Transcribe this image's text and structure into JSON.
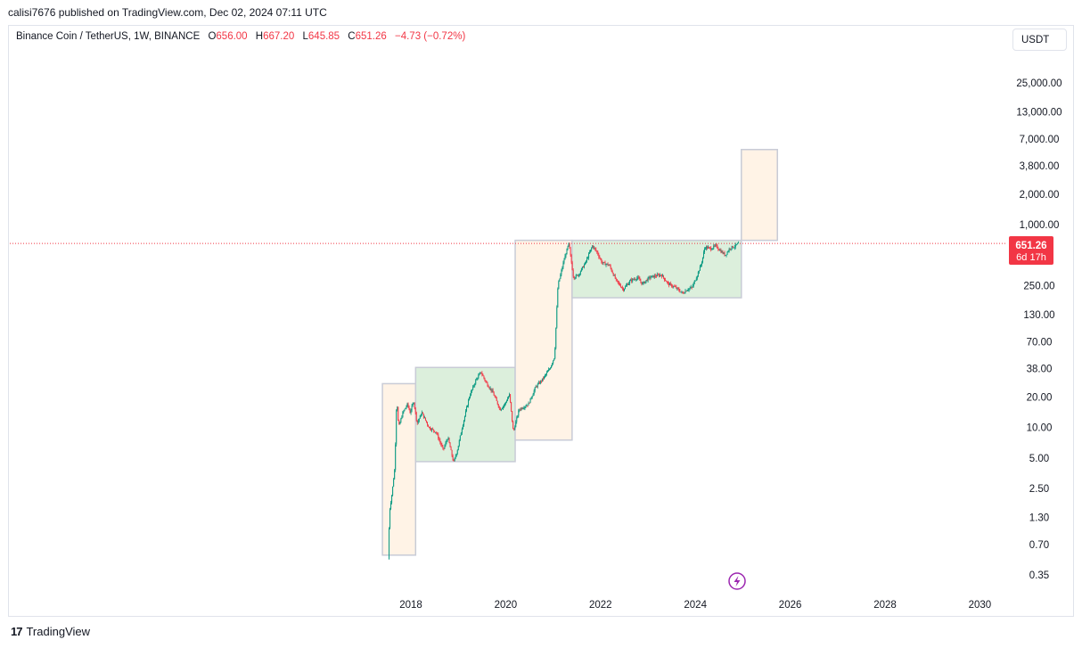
{
  "header": {
    "published": "calisi7676 published on TradingView.com, Dec 02, 2024 07:11 UTC"
  },
  "legend": {
    "symbol": "Binance Coin / TetherUS, 1W, BINANCE",
    "open_label": "O",
    "open": "656.00",
    "high_label": "H",
    "high": "667.20",
    "low_label": "L",
    "low": "645.85",
    "close_label": "C",
    "close": "651.26",
    "change": "−4.73 (−0.72%)"
  },
  "currency_button": "USDT",
  "price_badge": {
    "price": "651.26",
    "countdown": "6d 17h"
  },
  "footer": {
    "brand": "TradingView",
    "logo_glyph": "17"
  },
  "colors": {
    "up": "#089981",
    "down": "#f23645",
    "accumulation_box": "#dcefdc",
    "expansion_box": "#fff3e6",
    "box_border": "#c8cbd6",
    "flash_icon": "#9c27b0"
  },
  "chart_data": {
    "type": "candlestick",
    "title": "Binance Coin / TetherUS",
    "interval": "1W",
    "y_scale": "log",
    "x_ticks": [
      "2018",
      "2020",
      "2022",
      "2024",
      "2026",
      "2028",
      "2030"
    ],
    "x_tick_years": [
      2018,
      2020,
      2022,
      2024,
      2026,
      2028,
      2030
    ],
    "y_ticks": [
      "25,000.00",
      "13,000.00",
      "7,000.00",
      "3,800.00",
      "2,000.00",
      "1,000.00",
      "250.00",
      "130.00",
      "70.00",
      "38.00",
      "20.00",
      "10.00",
      "5.00",
      "2.50",
      "1.30",
      "0.70",
      "0.35"
    ],
    "y_tick_values": [
      25000,
      13000,
      7000,
      3800,
      2000,
      1000,
      250,
      130,
      70,
      38,
      20,
      10,
      5,
      2.5,
      1.3,
      0.7,
      0.35
    ],
    "current_price": 651.26,
    "price_path": [
      [
        2017.54,
        0.5
      ],
      [
        2017.57,
        1.5
      ],
      [
        2017.62,
        2.2
      ],
      [
        2017.68,
        4.0
      ],
      [
        2017.72,
        20.0
      ],
      [
        2017.76,
        10.0
      ],
      [
        2017.85,
        14.0
      ],
      [
        2017.95,
        17.0
      ],
      [
        2018.0,
        14.0
      ],
      [
        2018.08,
        18.0
      ],
      [
        2018.15,
        11.0
      ],
      [
        2018.25,
        14.0
      ],
      [
        2018.4,
        10.0
      ],
      [
        2018.55,
        9.0
      ],
      [
        2018.7,
        6.0
      ],
      [
        2018.8,
        8.0
      ],
      [
        2018.92,
        4.5
      ],
      [
        2019.0,
        6.0
      ],
      [
        2019.1,
        10.0
      ],
      [
        2019.25,
        20.0
      ],
      [
        2019.4,
        30.0
      ],
      [
        2019.5,
        35.0
      ],
      [
        2019.6,
        28.0
      ],
      [
        2019.75,
        22.0
      ],
      [
        2019.9,
        15.0
      ],
      [
        2020.0,
        17.0
      ],
      [
        2020.1,
        21.0
      ],
      [
        2020.18,
        9.0
      ],
      [
        2020.3,
        15.0
      ],
      [
        2020.5,
        17.0
      ],
      [
        2020.65,
        25.0
      ],
      [
        2020.8,
        30.0
      ],
      [
        2020.95,
        38.0
      ],
      [
        2021.05,
        50.0
      ],
      [
        2021.12,
        250.0
      ],
      [
        2021.25,
        450.0
      ],
      [
        2021.35,
        650.0
      ],
      [
        2021.45,
        300.0
      ],
      [
        2021.55,
        320.0
      ],
      [
        2021.7,
        420.0
      ],
      [
        2021.85,
        620.0
      ],
      [
        2021.95,
        530.0
      ],
      [
        2022.05,
        420.0
      ],
      [
        2022.2,
        400.0
      ],
      [
        2022.35,
        280.0
      ],
      [
        2022.5,
        230.0
      ],
      [
        2022.65,
        280.0
      ],
      [
        2022.8,
        300.0
      ],
      [
        2022.9,
        260.0
      ],
      [
        2023.05,
        300.0
      ],
      [
        2023.15,
        310.0
      ],
      [
        2023.3,
        320.0
      ],
      [
        2023.45,
        260.0
      ],
      [
        2023.6,
        240.0
      ],
      [
        2023.75,
        210.0
      ],
      [
        2023.85,
        230.0
      ],
      [
        2023.95,
        240.0
      ],
      [
        2024.05,
        310.0
      ],
      [
        2024.15,
        420.0
      ],
      [
        2024.22,
        600.0
      ],
      [
        2024.35,
        580.0
      ],
      [
        2024.45,
        620.0
      ],
      [
        2024.55,
        550.0
      ],
      [
        2024.65,
        500.0
      ],
      [
        2024.75,
        590.0
      ],
      [
        2024.85,
        610.0
      ],
      [
        2024.92,
        651.26
      ]
    ],
    "boxes": [
      {
        "kind": "expansion",
        "x": [
          2017.4,
          2018.1
        ],
        "y": [
          0.55,
          27.0
        ]
      },
      {
        "kind": "accumulation",
        "x": [
          2018.1,
          2020.2
        ],
        "y": [
          4.6,
          39.0
        ]
      },
      {
        "kind": "expansion",
        "x": [
          2020.2,
          2021.4
        ],
        "y": [
          7.5,
          700.0
        ]
      },
      {
        "kind": "accumulation",
        "x": [
          2021.4,
          2024.97
        ],
        "y": [
          190.0,
          700.0
        ]
      },
      {
        "kind": "expansion",
        "x": [
          2024.97,
          2025.73
        ],
        "y": [
          700.0,
          5500.0
        ]
      }
    ]
  }
}
